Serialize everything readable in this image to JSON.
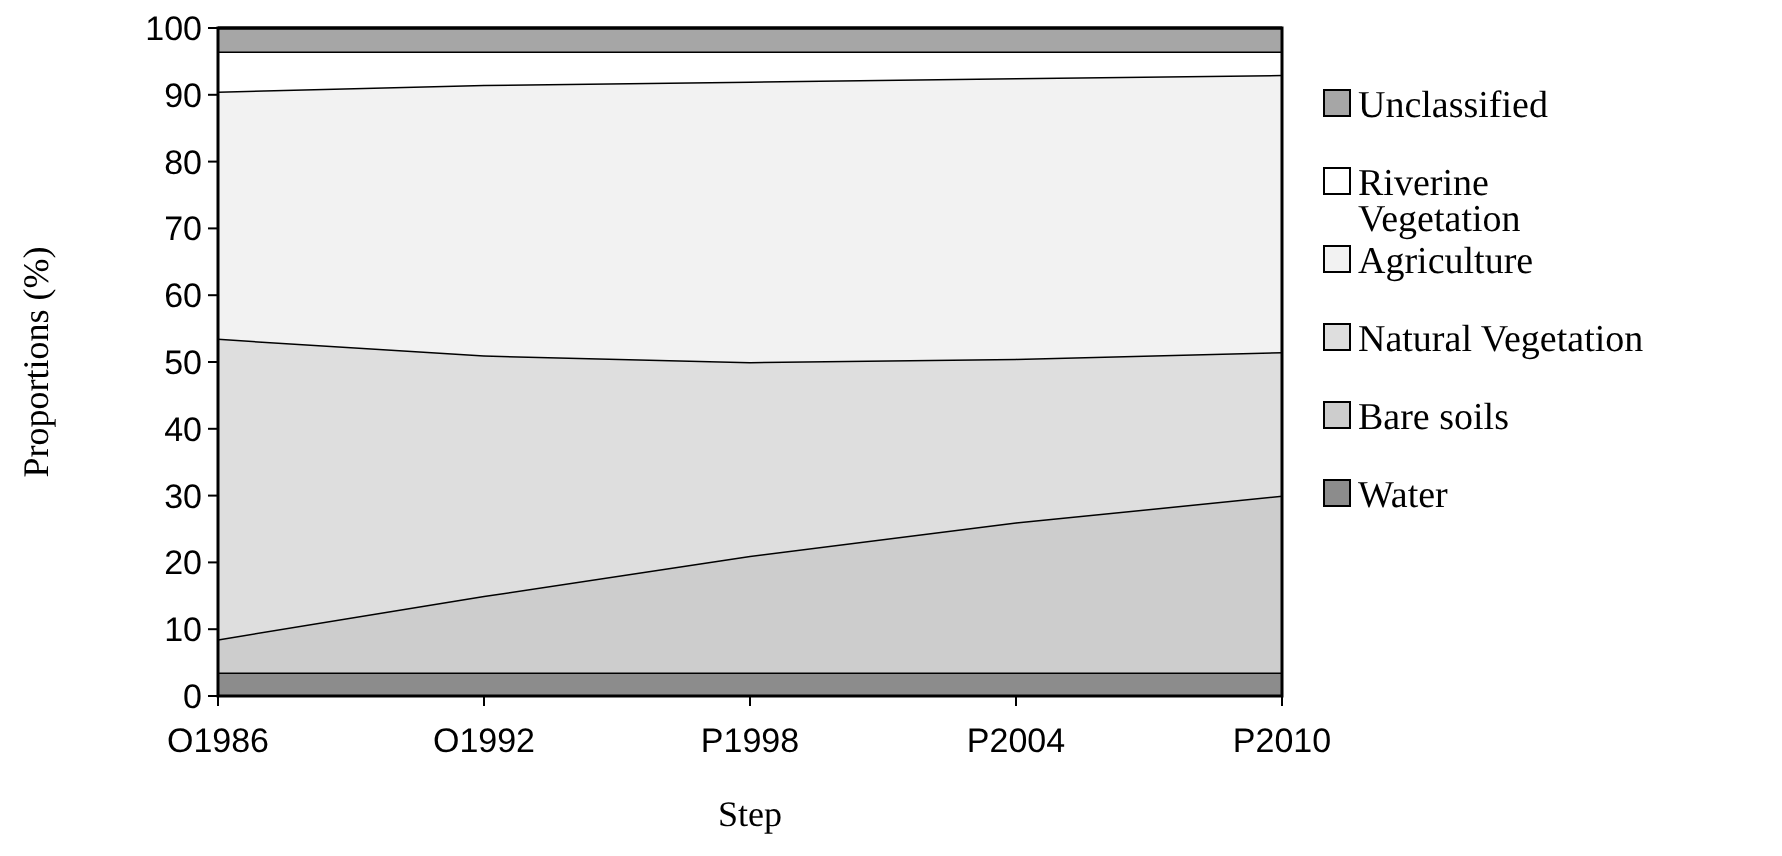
{
  "chart_data": {
    "type": "area",
    "stacked": true,
    "xlabel": "Step",
    "ylabel": "Proportions (%)",
    "categories": [
      "O1986",
      "O1992",
      "P1998",
      "P2004",
      "P2010"
    ],
    "ylim": [
      0,
      100
    ],
    "yticks": [
      0,
      10,
      20,
      30,
      40,
      50,
      60,
      70,
      80,
      90,
      100
    ],
    "legend": "right",
    "series": [
      {
        "name": "Water",
        "color": "#8c8c8c",
        "values": [
          3.5,
          3.5,
          3.5,
          3.5,
          3.5
        ]
      },
      {
        "name": "Bare soils",
        "color": "#cdcdcd",
        "values": [
          5,
          11.5,
          17.5,
          22.5,
          26.5
        ]
      },
      {
        "name": "Natural Vegetation",
        "color": "#dedede",
        "values": [
          45,
          36,
          29,
          24.5,
          21.5
        ]
      },
      {
        "name": "Agriculture",
        "color": "#f2f2f2",
        "values": [
          37,
          40.5,
          42,
          42,
          41.5
        ]
      },
      {
        "name": "Riverine Vegetation",
        "color": "#ffffff",
        "values": [
          6,
          5,
          4.5,
          4,
          3.5
        ]
      },
      {
        "name": "Unclassified",
        "color": "#a6a6a6",
        "values": [
          3.5,
          3.5,
          3.5,
          3.5,
          3.5
        ]
      }
    ]
  }
}
